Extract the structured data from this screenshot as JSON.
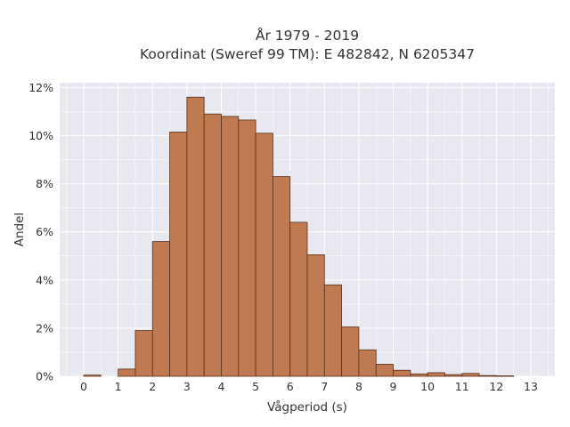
{
  "chart_data": {
    "type": "bar",
    "title_lines": [
      "År 1979 - 2019",
      "Koordinat (Sweref 99 TM): E 482842, N 6205347"
    ],
    "xlabel": "Vågperiod (s)",
    "ylabel": "Andel",
    "bin_width": 0.5,
    "bin_starts": [
      0,
      0.5,
      1,
      1.5,
      2,
      2.5,
      3,
      3.5,
      4,
      4.5,
      5,
      5.5,
      6,
      6.5,
      7,
      7.5,
      8,
      8.5,
      9,
      9.5,
      10,
      10.5,
      11,
      11.5,
      12,
      12.5
    ],
    "values": [
      0.05,
      0,
      0.3,
      1.9,
      5.6,
      10.15,
      11.6,
      10.9,
      10.8,
      10.65,
      10.1,
      8.3,
      6.4,
      5.05,
      3.8,
      2.05,
      1.1,
      0.5,
      0.25,
      0.1,
      0.15,
      0.07,
      0.12,
      0.03,
      0.02,
      0
    ],
    "xlim": [
      -0.7,
      13.7
    ],
    "ylim": [
      0,
      12.2
    ],
    "xticks": [
      0,
      1,
      2,
      3,
      4,
      5,
      6,
      7,
      8,
      9,
      10,
      11,
      12,
      13
    ],
    "xtick_labels": [
      "0",
      "1",
      "2",
      "3",
      "4",
      "5",
      "6",
      "7",
      "8",
      "9",
      "10",
      "11",
      "12",
      "13"
    ],
    "yticks": [
      0,
      2,
      4,
      6,
      8,
      10,
      12
    ],
    "ytick_labels": [
      "0%",
      "2%",
      "4%",
      "6%",
      "8%",
      "10%",
      "12%"
    ],
    "grid": true,
    "colors": {
      "bar_fill": "#c07a52",
      "bar_edge": "#5a3018",
      "plot_background": "#e8e8f1",
      "grid": "#ffffff"
    }
  }
}
